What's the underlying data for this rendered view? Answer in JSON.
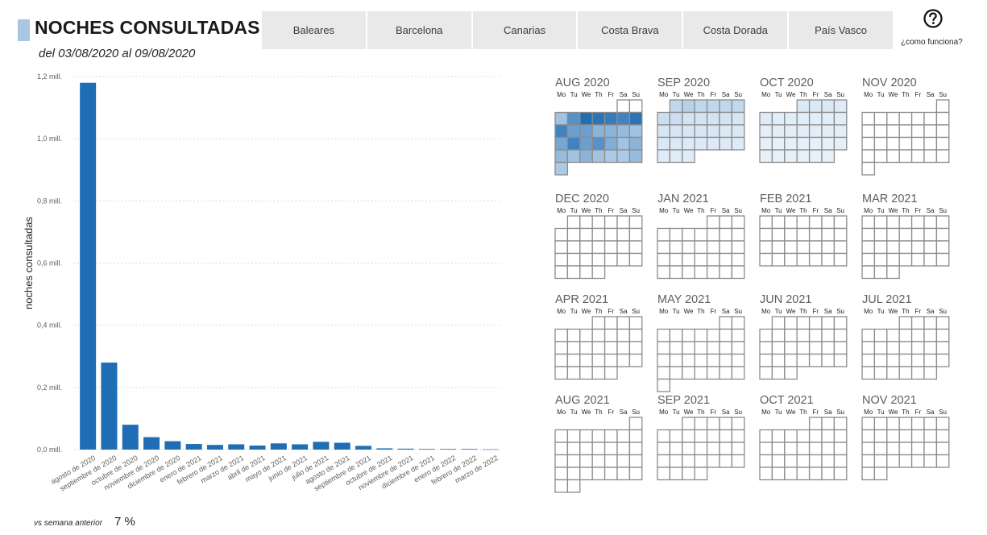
{
  "header": {
    "title": "NOCHES CONSULTADAS",
    "subtitle": "del 03/08/2020 al 09/08/2020"
  },
  "tabs": [
    {
      "label": "Baleares"
    },
    {
      "label": "Barcelona"
    },
    {
      "label": "Canarias"
    },
    {
      "label": "Costa Brava"
    },
    {
      "label": "Costa Dorada"
    },
    {
      "label": "País Vasco"
    }
  ],
  "help": {
    "label": "¿como funciona?",
    "icon": "question-circle-icon"
  },
  "colors": {
    "bar": "#1f6db5",
    "grid": "#d0d0d0",
    "cell_border": "#8c8c8c",
    "accent": "#a9c6e3"
  },
  "chart_data": {
    "type": "bar",
    "ylabel": "noches consultadas",
    "xlabel": "",
    "ylim": [
      0,
      1.2
    ],
    "yticks": [
      "0,0 mill.",
      "0,2 mill.",
      "0,4 mill.",
      "0,6 mill.",
      "0,8 mill.",
      "1,0 mill.",
      "1,2 mill."
    ],
    "categories": [
      "agosto de 2020",
      "septiembre de 2020",
      "octubre de 2020",
      "noviembre de 2020",
      "diciembre de 2020",
      "enero de 2021",
      "febrero de 2021",
      "marzo de 2021",
      "abril de 2021",
      "mayo de 2021",
      "junio de 2021",
      "julio de 2021",
      "agosto de 2021",
      "septiembre de 2021",
      "octubre de 2021",
      "noviembre de 2021",
      "diciembre de 2021",
      "enero de 2022",
      "febrero de 2022",
      "marzo de 2022"
    ],
    "values": [
      1.18,
      0.28,
      0.08,
      0.04,
      0.027,
      0.018,
      0.015,
      0.017,
      0.013,
      0.02,
      0.017,
      0.025,
      0.022,
      0.012,
      0.004,
      0.003,
      0.002,
      0.002,
      0.002,
      0.001
    ],
    "grid": true
  },
  "calendar": {
    "weekday_labels": [
      "Mo",
      "Tu",
      "We",
      "Th",
      "Fr",
      "Sa",
      "Su"
    ],
    "months": [
      {
        "label": "AUG 2020",
        "year": 2020,
        "month": 8,
        "intensity": [
          0,
          0,
          0.35,
          0.7,
          0.95,
          0.9,
          0.85,
          0.8,
          0.9,
          0.8,
          0.6,
          0.6,
          0.45,
          0.45,
          0.4,
          0.35,
          0.55,
          0.8,
          0.6,
          0.7,
          0.5,
          0.35,
          0.45,
          0.4,
          0.35,
          0.45,
          0.35,
          0.3,
          0.3,
          0.4,
          0.3
        ]
      },
      {
        "label": "SEP 2020",
        "year": 2020,
        "month": 9,
        "intensity": [
          0.2,
          0.25,
          0.2,
          0.2,
          0.2,
          0.2,
          0.15,
          0.15,
          0.12,
          0.12,
          0.12,
          0.12,
          0.1,
          0.1,
          0.1,
          0.1,
          0.1,
          0.1,
          0.08,
          0.08,
          0.08,
          0.08,
          0.07,
          0.07,
          0.07,
          0.07,
          0.06,
          0.06,
          0.06,
          0.06
        ]
      },
      {
        "label": "OCT 2020",
        "year": 2020,
        "month": 10,
        "intensity": [
          0.08,
          0.08,
          0.08,
          0.06,
          0.06,
          0.05,
          0.05,
          0.05,
          0.05,
          0.05,
          0.05,
          0.04,
          0.04,
          0.04,
          0.04,
          0.04,
          0.04,
          0.04,
          0.03,
          0.03,
          0.03,
          0.03,
          0.03,
          0.03,
          0.03,
          0.03,
          0.03,
          0.03,
          0.03,
          0.03,
          0.03
        ]
      },
      {
        "label": "NOV 2020",
        "year": 2020,
        "month": 11,
        "intensity": []
      },
      {
        "label": "DEC 2020",
        "year": 2020,
        "month": 12,
        "intensity": []
      },
      {
        "label": "JAN 2021",
        "year": 2021,
        "month": 1,
        "intensity": []
      },
      {
        "label": "FEB 2021",
        "year": 2021,
        "month": 2,
        "intensity": []
      },
      {
        "label": "MAR 2021",
        "year": 2021,
        "month": 3,
        "intensity": []
      },
      {
        "label": "APR 2021",
        "year": 2021,
        "month": 4,
        "intensity": []
      },
      {
        "label": "MAY 2021",
        "year": 2021,
        "month": 5,
        "intensity": []
      },
      {
        "label": "JUN 2021",
        "year": 2021,
        "month": 6,
        "intensity": []
      },
      {
        "label": "JUL 2021",
        "year": 2021,
        "month": 7,
        "intensity": []
      },
      {
        "label": "AUG 2021",
        "year": 2021,
        "month": 8,
        "intensity": []
      },
      {
        "label": "SEP 2021",
        "year": 2021,
        "month": 9,
        "intensity": []
      },
      {
        "label": "OCT 2021",
        "year": 2021,
        "month": 10,
        "intensity": []
      },
      {
        "label": "NOV 2021",
        "year": 2021,
        "month": 11,
        "intensity": []
      }
    ]
  },
  "footer": {
    "label": "vs semana anterior",
    "value": "7 %"
  }
}
